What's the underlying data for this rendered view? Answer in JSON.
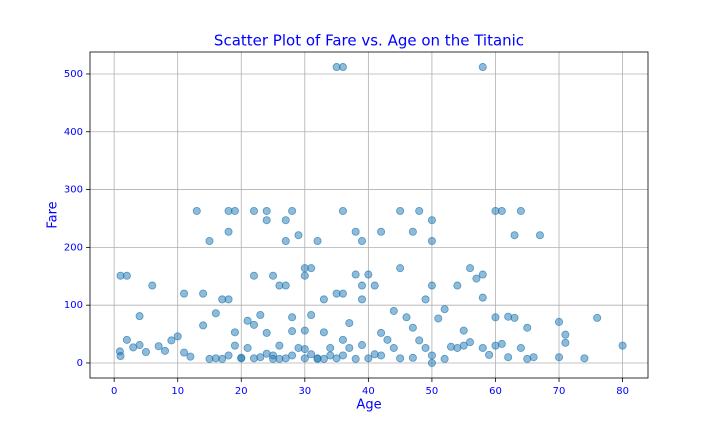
{
  "chart_data": {
    "type": "scatter",
    "title": "Scatter Plot of Fare vs. Age on the Titanic",
    "x_label": "Age",
    "y_label": "Fare",
    "color": "#1f77b4",
    "grid": true,
    "xlim": [
      -3.8,
      84
    ],
    "ylim": [
      -26,
      538
    ],
    "xticks": [
      0,
      10,
      20,
      30,
      40,
      50,
      60,
      70,
      80
    ],
    "yticks": [
      0,
      100,
      200,
      300,
      400,
      500
    ],
    "x": [
      35,
      36,
      58,
      13,
      18,
      19,
      22,
      24,
      28,
      36,
      45,
      48,
      60,
      61,
      64,
      15,
      27,
      32,
      39,
      50,
      24,
      27,
      50,
      18,
      38,
      42,
      47,
      29,
      63,
      67,
      1,
      2,
      22,
      25,
      30,
      38,
      40,
      58,
      30,
      31,
      45,
      56,
      57,
      6,
      26,
      27,
      39,
      41,
      50,
      54,
      11,
      14,
      35,
      36,
      17,
      18,
      33,
      39,
      49,
      58,
      4,
      16,
      23,
      31,
      44,
      52,
      60,
      65,
      76,
      70,
      2,
      9,
      14,
      19,
      22,
      28,
      33,
      37,
      42,
      47,
      51,
      55,
      62,
      71,
      80,
      0.9,
      1,
      3,
      5,
      8,
      10,
      12,
      16,
      18,
      20,
      21,
      22,
      24,
      25,
      26,
      27,
      28,
      29,
      30,
      31,
      32,
      33,
      34,
      35,
      36,
      38,
      39,
      40,
      42,
      44,
      45,
      47,
      49,
      50,
      52,
      54,
      56,
      59,
      61,
      62,
      64,
      66,
      70,
      71,
      74,
      4,
      7,
      11,
      15,
      17,
      19,
      21,
      23,
      24,
      26,
      28,
      30,
      32,
      34,
      36,
      37,
      41,
      43,
      46,
      48,
      50,
      53,
      55,
      58,
      60,
      63,
      65,
      20,
      25,
      30
    ],
    "values": [
      512,
      512,
      512,
      263,
      263,
      263,
      263,
      263,
      263,
      263,
      263,
      263,
      263,
      263,
      263,
      211,
      211,
      211,
      211,
      211,
      247,
      247,
      247,
      227,
      227,
      227,
      227,
      221,
      221,
      221,
      151,
      151,
      151,
      151,
      151,
      153,
      153,
      153,
      164,
      164,
      164,
      164,
      146,
      134,
      134,
      134,
      134,
      134,
      134,
      134,
      120,
      120,
      120,
      120,
      110,
      110,
      110,
      110,
      110,
      113,
      81,
      86,
      83,
      83,
      90,
      93,
      79,
      61,
      78,
      71,
      40,
      39,
      65,
      53,
      66,
      55,
      53,
      69,
      52,
      61,
      77,
      56,
      80,
      49,
      30,
      20,
      12,
      27,
      19,
      21,
      46,
      11,
      8,
      13,
      8,
      26,
      8,
      16,
      7,
      30,
      8,
      13,
      26,
      8,
      15,
      8,
      7,
      26,
      8,
      13,
      7,
      31,
      8,
      13,
      26,
      8,
      9,
      26,
      13,
      7,
      26,
      36,
      14,
      33,
      10,
      26,
      10,
      10,
      35,
      8,
      31,
      29,
      18,
      7,
      7,
      30,
      73,
      10,
      52,
      7,
      79,
      56,
      7,
      13,
      40,
      26,
      15,
      40,
      79,
      39,
      0,
      28,
      30,
      26,
      30,
      78,
      7,
      9,
      13,
      24
    ]
  }
}
